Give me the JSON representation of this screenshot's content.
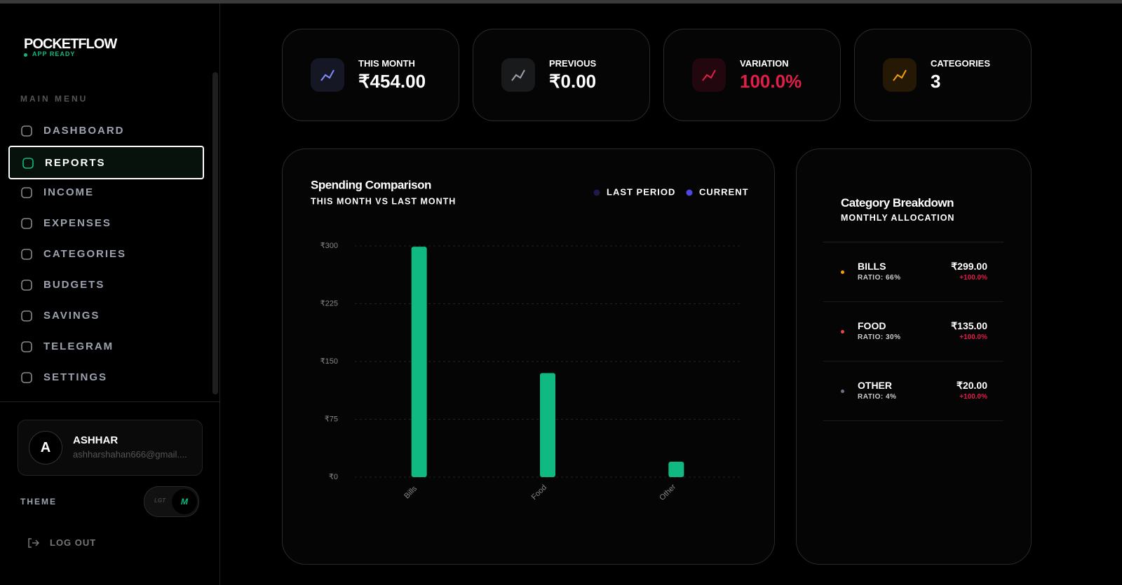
{
  "sidebar": {
    "brand": "POCKETFLOW",
    "status": "APP READY",
    "menu_title": "MAIN MENU",
    "menu": [
      "DASHBOARD",
      "REPORTS",
      "INCOME",
      "EXPENSES",
      "CATEGORIES",
      "BUDGETS",
      "SAVINGS",
      "TELEGRAM",
      "SETTINGS"
    ],
    "active": 1,
    "user": {
      "initial": "A",
      "name": "ASHHAR",
      "email": "ashharshahan666@gmail...."
    },
    "theme_label": "THEME",
    "theme_options": [
      "LGT",
      "M"
    ],
    "logout": "LOG OUT"
  },
  "stats": [
    {
      "label": "THIS MONTH",
      "value": "₹454.00",
      "color": "#818cf8",
      "value_color": "#ffffff"
    },
    {
      "label": "PREVIOUS",
      "value": "₹0.00",
      "color": "#9ca3af",
      "value_color": "#ffffff"
    },
    {
      "label": "VARIATION",
      "value": "100.0%",
      "color": "#e11d48",
      "value_color": "#e11d48"
    },
    {
      "label": "CATEGORIES",
      "value": "3",
      "color": "#f59e0b",
      "value_color": "#ffffff"
    }
  ],
  "chart_data": {
    "type": "bar",
    "title": "Spending Comparison",
    "subtitle": "THIS MONTH VS LAST MONTH",
    "categories": [
      "Bills",
      "Food",
      "Other"
    ],
    "series": [
      {
        "name": "LAST PERIOD",
        "color": "#1e1b4b",
        "values": [
          0,
          0,
          0
        ]
      },
      {
        "name": "CURRENT",
        "color": "#10b981",
        "legend_color": "#4f46e5",
        "values": [
          299,
          135,
          20
        ]
      }
    ],
    "ylim": [
      0,
      300
    ],
    "yticks": [
      {
        "value": 0,
        "label": "₹0"
      },
      {
        "value": 75,
        "label": "₹75"
      },
      {
        "value": 150,
        "label": "₹150"
      },
      {
        "value": 225,
        "label": "₹225"
      },
      {
        "value": 300,
        "label": "₹300"
      }
    ],
    "grid": true
  },
  "breakdown": {
    "title": "Category Breakdown",
    "subtitle": "MONTHLY ALLOCATION",
    "items": [
      {
        "name": "BILLS",
        "ratio": "RATIO: 66%",
        "amount": "₹299.00",
        "change": "+100.0%",
        "color": "#f59e0b"
      },
      {
        "name": "FOOD",
        "ratio": "RATIO: 30%",
        "amount": "₹135.00",
        "change": "+100.0%",
        "color": "#ef4444"
      },
      {
        "name": "OTHER",
        "ratio": "RATIO: 4%",
        "amount": "₹20.00",
        "change": "+100.0%",
        "color": "#6b7280"
      }
    ]
  }
}
